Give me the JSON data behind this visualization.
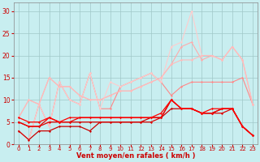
{
  "xlabel": "Vent moyen/en rafales ( km/h )",
  "xlim": [
    -0.5,
    23.5
  ],
  "ylim": [
    0,
    32
  ],
  "yticks": [
    0,
    5,
    10,
    15,
    20,
    25,
    30
  ],
  "xticks": [
    0,
    1,
    2,
    3,
    4,
    5,
    6,
    7,
    8,
    9,
    10,
    11,
    12,
    13,
    14,
    15,
    16,
    17,
    18,
    19,
    20,
    21,
    22,
    23
  ],
  "bg_color": "#c8eef0",
  "grid_color": "#a0c8c8",
  "lines_light": [
    {
      "x": [
        0,
        1,
        2,
        3,
        4,
        5,
        6,
        7,
        8,
        9,
        10,
        11,
        12,
        13,
        14,
        15,
        16,
        17,
        18,
        19,
        20,
        21,
        22,
        23
      ],
      "y": [
        6,
        10,
        9,
        15,
        13,
        13,
        11,
        10,
        10,
        11,
        12,
        12,
        13,
        14,
        15,
        18,
        22,
        23,
        19,
        20,
        19,
        22,
        19,
        9
      ],
      "color": "#ffaaaa",
      "lw": 0.8
    },
    {
      "x": [
        0,
        1,
        2,
        3,
        4,
        5,
        6,
        7,
        8,
        9,
        10,
        11,
        12,
        13,
        14,
        15,
        16,
        17,
        18,
        19,
        20,
        21,
        22,
        23
      ],
      "y": [
        3,
        1,
        9,
        4,
        14,
        10,
        9,
        16,
        8,
        8,
        13,
        14,
        15,
        16,
        14,
        11,
        13,
        14,
        14,
        14,
        14,
        14,
        15,
        9
      ],
      "color": "#ff8888",
      "lw": 0.8
    },
    {
      "x": [
        0,
        1,
        2,
        3,
        4,
        5,
        6,
        7,
        8,
        9,
        10,
        11,
        12,
        13,
        14,
        15,
        16,
        17,
        18,
        19,
        20,
        21,
        22,
        23
      ],
      "y": [
        3,
        1,
        9,
        4,
        14,
        10,
        9,
        16,
        8,
        14,
        13,
        14,
        15,
        16,
        14,
        22,
        23,
        30,
        20,
        20,
        19,
        22,
        19,
        9
      ],
      "color": "#ffcccc",
      "lw": 0.8
    },
    {
      "x": [
        0,
        1,
        2,
        3,
        4,
        5,
        6,
        7,
        8,
        9,
        10,
        11,
        12,
        13,
        14,
        15,
        16,
        17,
        18,
        19,
        20,
        21,
        22,
        23
      ],
      "y": [
        6,
        10,
        9,
        15,
        13,
        13,
        11,
        10,
        10,
        11,
        12,
        12,
        13,
        14,
        15,
        18,
        19,
        19,
        20,
        20,
        19,
        22,
        19,
        9
      ],
      "color": "#ffbbbb",
      "lw": 0.8
    }
  ],
  "lines_dark": [
    {
      "x": [
        0,
        1,
        2,
        3,
        4,
        5,
        6,
        7,
        8,
        9,
        10,
        11,
        12,
        13,
        14,
        15,
        16,
        17,
        18,
        19,
        20,
        21,
        22,
        23
      ],
      "y": [
        3,
        1,
        3,
        3,
        4,
        4,
        4,
        3,
        5,
        5,
        5,
        5,
        5,
        6,
        6,
        8,
        8,
        8,
        7,
        7,
        8,
        8,
        4,
        2
      ],
      "color": "#cc0000",
      "lw": 0.9
    },
    {
      "x": [
        0,
        1,
        2,
        3,
        4,
        5,
        6,
        7,
        8,
        9,
        10,
        11,
        12,
        13,
        14,
        15,
        16,
        17,
        18,
        19,
        20,
        21,
        22,
        23
      ],
      "y": [
        5,
        4,
        4,
        5,
        5,
        5,
        5,
        5,
        5,
        5,
        5,
        5,
        5,
        5,
        6,
        10,
        8,
        8,
        7,
        7,
        7,
        8,
        4,
        2
      ],
      "color": "#dd0000",
      "lw": 0.9
    },
    {
      "x": [
        0,
        1,
        2,
        3,
        4,
        5,
        6,
        7,
        8,
        9,
        10,
        11,
        12,
        13,
        14,
        15,
        16,
        17,
        18,
        19,
        20,
        21,
        22,
        23
      ],
      "y": [
        5,
        4,
        4,
        6,
        5,
        5,
        6,
        6,
        6,
        6,
        6,
        6,
        6,
        6,
        6,
        10,
        8,
        8,
        7,
        7,
        8,
        8,
        4,
        2
      ],
      "color": "#ee0000",
      "lw": 0.9
    },
    {
      "x": [
        0,
        1,
        2,
        3,
        4,
        5,
        6,
        7,
        8,
        9,
        10,
        11,
        12,
        13,
        14,
        15,
        16,
        17,
        18,
        19,
        20,
        21,
        22,
        23
      ],
      "y": [
        6,
        5,
        5,
        6,
        5,
        6,
        6,
        6,
        6,
        6,
        6,
        6,
        6,
        6,
        7,
        10,
        8,
        8,
        7,
        8,
        8,
        8,
        4,
        2
      ],
      "color": "#ff0000",
      "lw": 0.9
    }
  ],
  "marker": "D",
  "marker_size": 1.5
}
